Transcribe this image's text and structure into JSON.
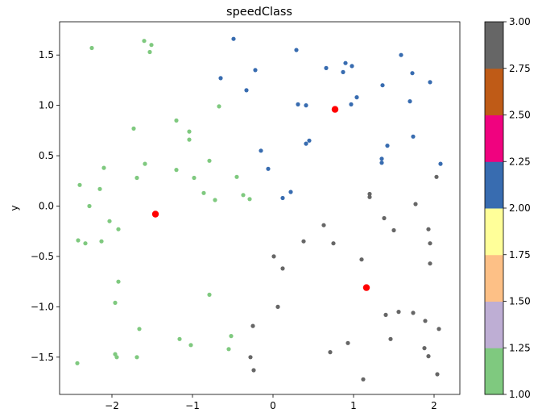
{
  "chart_data": {
    "type": "scatter",
    "title": "speedClass",
    "xlabel": "",
    "ylabel": "y",
    "xlim": [
      -2.65,
      2.32
    ],
    "ylim": [
      -1.87,
      1.83
    ],
    "x_ticks": [
      -2,
      -1,
      0,
      1,
      2
    ],
    "x_tick_labels": [
      "−2",
      "−1",
      "0",
      "1",
      "2"
    ],
    "y_ticks": [
      -1.5,
      -1.0,
      -0.5,
      0.0,
      0.5,
      1.0,
      1.5
    ],
    "y_tick_labels": [
      "−1.5",
      "−1.0",
      "−0.5",
      "0.0",
      "0.5",
      "1.0",
      "1.5"
    ],
    "grid": false,
    "colorbar": {
      "range": [
        1.0,
        3.0
      ],
      "ticks": [
        1.0,
        1.25,
        1.5,
        1.75,
        2.0,
        2.25,
        2.5,
        2.75,
        3.0
      ],
      "tick_labels": [
        "1.00",
        "1.25",
        "1.50",
        "1.75",
        "2.00",
        "2.25",
        "2.50",
        "2.75",
        "3.00"
      ],
      "colors": [
        "#7fc97f",
        "#beaed4",
        "#fdc086",
        "#ffff99",
        "#386cb0",
        "#f0027f",
        "#bf5b17",
        "#666666"
      ]
    },
    "series": [
      {
        "class": 1,
        "color": "#7fc97f",
        "points": [
          [
            -2.25,
            1.57
          ],
          [
            -1.6,
            1.64
          ],
          [
            -1.51,
            1.6
          ],
          [
            -1.53,
            1.53
          ],
          [
            -0.67,
            0.99
          ],
          [
            -1.2,
            0.85
          ],
          [
            -1.73,
            0.77
          ],
          [
            -1.04,
            0.74
          ],
          [
            -1.04,
            0.66
          ],
          [
            -0.79,
            0.45
          ],
          [
            -1.59,
            0.42
          ],
          [
            -2.1,
            0.38
          ],
          [
            -1.2,
            0.36
          ],
          [
            -1.69,
            0.28
          ],
          [
            -0.98,
            0.28
          ],
          [
            -0.45,
            0.29
          ],
          [
            -2.4,
            0.21
          ],
          [
            -2.15,
            0.17
          ],
          [
            -0.86,
            0.13
          ],
          [
            -0.37,
            0.11
          ],
          [
            -0.29,
            0.07
          ],
          [
            -0.72,
            0.06
          ],
          [
            -2.28,
            0.0
          ],
          [
            -2.03,
            -0.15
          ],
          [
            -1.92,
            -0.23
          ],
          [
            -2.42,
            -0.34
          ],
          [
            -2.13,
            -0.35
          ],
          [
            -2.33,
            -0.37
          ],
          [
            -1.92,
            -0.75
          ],
          [
            -0.79,
            -0.88
          ],
          [
            -1.96,
            -0.96
          ],
          [
            -1.66,
            -1.22
          ],
          [
            -0.52,
            -1.29
          ],
          [
            -1.16,
            -1.32
          ],
          [
            -1.02,
            -1.38
          ],
          [
            -0.55,
            -1.42
          ],
          [
            -1.96,
            -1.47
          ],
          [
            -1.94,
            -1.5
          ],
          [
            -1.69,
            -1.5
          ],
          [
            -2.43,
            -1.56
          ]
        ]
      },
      {
        "class": 2,
        "color": "#386cb0",
        "points": [
          [
            -0.49,
            1.66
          ],
          [
            0.29,
            1.55
          ],
          [
            1.59,
            1.5
          ],
          [
            0.9,
            1.42
          ],
          [
            0.66,
            1.37
          ],
          [
            0.98,
            1.39
          ],
          [
            -0.22,
            1.35
          ],
          [
            0.87,
            1.33
          ],
          [
            1.73,
            1.32
          ],
          [
            -0.65,
            1.27
          ],
          [
            1.95,
            1.23
          ],
          [
            1.36,
            1.2
          ],
          [
            -0.33,
            1.15
          ],
          [
            1.04,
            1.08
          ],
          [
            1.7,
            1.04
          ],
          [
            0.31,
            1.01
          ],
          [
            0.41,
            1.0
          ],
          [
            0.97,
            1.01
          ],
          [
            1.74,
            0.69
          ],
          [
            0.45,
            0.65
          ],
          [
            0.41,
            0.62
          ],
          [
            1.42,
            0.6
          ],
          [
            -0.15,
            0.55
          ],
          [
            1.35,
            0.47
          ],
          [
            1.35,
            0.43
          ],
          [
            2.08,
            0.42
          ],
          [
            -0.06,
            0.37
          ],
          [
            0.22,
            0.14
          ],
          [
            0.12,
            0.08
          ]
        ]
      },
      {
        "class": 3,
        "color": "#666666",
        "points": [
          [
            2.03,
            0.29
          ],
          [
            1.2,
            0.12
          ],
          [
            1.2,
            0.09
          ],
          [
            1.77,
            0.02
          ],
          [
            1.38,
            -0.12
          ],
          [
            0.63,
            -0.19
          ],
          [
            1.93,
            -0.23
          ],
          [
            1.5,
            -0.24
          ],
          [
            0.38,
            -0.35
          ],
          [
            0.75,
            -0.37
          ],
          [
            1.95,
            -0.37
          ],
          [
            0.01,
            -0.5
          ],
          [
            1.1,
            -0.53
          ],
          [
            1.95,
            -0.57
          ],
          [
            0.12,
            -0.62
          ],
          [
            0.06,
            -1.0
          ],
          [
            1.56,
            -1.05
          ],
          [
            1.74,
            -1.06
          ],
          [
            1.4,
            -1.08
          ],
          [
            1.89,
            -1.14
          ],
          [
            -0.25,
            -1.19
          ],
          [
            2.06,
            -1.22
          ],
          [
            1.46,
            -1.32
          ],
          [
            0.93,
            -1.36
          ],
          [
            1.88,
            -1.41
          ],
          [
            0.71,
            -1.45
          ],
          [
            1.93,
            -1.49
          ],
          [
            -0.28,
            -1.5
          ],
          [
            -0.24,
            -1.63
          ],
          [
            2.04,
            -1.67
          ],
          [
            1.12,
            -1.72
          ]
        ]
      }
    ],
    "centroids": {
      "color": "#ff0000",
      "points": [
        [
          0.77,
          0.96
        ],
        [
          -1.46,
          -0.08
        ],
        [
          1.16,
          -0.81
        ]
      ]
    }
  }
}
